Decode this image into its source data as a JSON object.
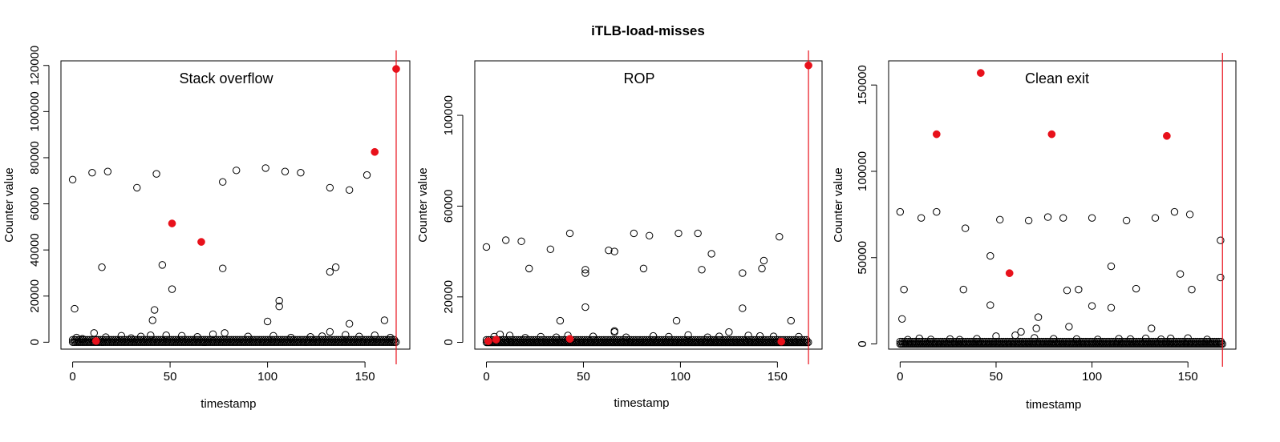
{
  "figure_title": "iTLB-load-misses",
  "colors": {
    "marker": "#000000",
    "highlight": "#e8111b",
    "vline": "#e8111b",
    "frame": "#000000"
  },
  "chart_data": [
    {
      "type": "scatter",
      "title": "Stack overflow",
      "xlabel": "timestamp",
      "ylabel": "Counter value",
      "xlim": [
        -6,
        173
      ],
      "ylim": [
        -3000,
        122000
      ],
      "xticks": [
        0,
        50,
        100,
        150
      ],
      "yticks": [
        0,
        20000,
        40000,
        60000,
        80000,
        100000,
        120000
      ],
      "vline_x": 166,
      "baseline": {
        "x_from": 0,
        "x_to": 166,
        "y": 0
      },
      "outliers": [
        [
          0,
          70500
        ],
        [
          1,
          14500
        ],
        [
          10,
          73500
        ],
        [
          15,
          32500
        ],
        [
          18,
          74000
        ],
        [
          33,
          67000
        ],
        [
          41,
          9500
        ],
        [
          42,
          14000
        ],
        [
          43,
          73000
        ],
        [
          46,
          33500
        ],
        [
          51,
          23000
        ],
        [
          77,
          69500
        ],
        [
          77,
          32000
        ],
        [
          84,
          74500
        ],
        [
          99,
          75500
        ],
        [
          100,
          9000
        ],
        [
          106,
          15500
        ],
        [
          106,
          18000
        ],
        [
          109,
          74000
        ],
        [
          117,
          73500
        ],
        [
          132,
          67000
        ],
        [
          132,
          30500
        ],
        [
          135,
          32500
        ],
        [
          142,
          66000
        ],
        [
          142,
          8000
        ],
        [
          151,
          72500
        ],
        [
          160,
          9500
        ]
      ],
      "low_points": [
        [
          2,
          2000
        ],
        [
          5,
          1500
        ],
        [
          11,
          4000
        ],
        [
          17,
          2200
        ],
        [
          25,
          2800
        ],
        [
          30,
          1800
        ],
        [
          35,
          2500
        ],
        [
          40,
          3000
        ],
        [
          48,
          3000
        ],
        [
          56,
          2800
        ],
        [
          64,
          2300
        ],
        [
          72,
          3500
        ],
        [
          78,
          4000
        ],
        [
          90,
          2500
        ],
        [
          103,
          2800
        ],
        [
          112,
          2000
        ],
        [
          122,
          2300
        ],
        [
          128,
          2600
        ],
        [
          132,
          4500
        ],
        [
          140,
          3200
        ],
        [
          147,
          2500
        ],
        [
          155,
          3000
        ],
        [
          163,
          2000
        ]
      ],
      "highlights": [
        [
          12,
          500
        ],
        [
          51,
          51500
        ],
        [
          66,
          43500
        ],
        [
          155,
          82500
        ],
        [
          166,
          118500
        ]
      ]
    },
    {
      "type": "scatter",
      "title": "ROP",
      "xlabel": "timestamp",
      "ylabel": "Counter value",
      "xlim": [
        -6,
        173
      ],
      "ylim": [
        -3000,
        124000
      ],
      "xticks": [
        0,
        50,
        100,
        150
      ],
      "yticks": [
        0,
        20000,
        60000,
        100000
      ],
      "vline_x": 166,
      "baseline": {
        "x_from": 0,
        "x_to": 166,
        "y": 0
      },
      "outliers": [
        [
          0,
          42000
        ],
        [
          10,
          45000
        ],
        [
          18,
          44500
        ],
        [
          22,
          32500
        ],
        [
          33,
          41000
        ],
        [
          38,
          9500
        ],
        [
          43,
          48000
        ],
        [
          51,
          30500
        ],
        [
          51,
          32000
        ],
        [
          51,
          15500
        ],
        [
          63,
          40500
        ],
        [
          66,
          40000
        ],
        [
          76,
          48000
        ],
        [
          81,
          32500
        ],
        [
          84,
          47000
        ],
        [
          98,
          9500
        ],
        [
          99,
          48000
        ],
        [
          109,
          48000
        ],
        [
          111,
          32000
        ],
        [
          116,
          39000
        ],
        [
          125,
          4500
        ],
        [
          132,
          30500
        ],
        [
          132,
          15000
        ],
        [
          142,
          32500
        ],
        [
          143,
          36000
        ],
        [
          151,
          46500
        ],
        [
          157,
          9500
        ]
      ],
      "low_points": [
        [
          4,
          2500
        ],
        [
          7,
          3500
        ],
        [
          12,
          3000
        ],
        [
          20,
          2000
        ],
        [
          28,
          2500
        ],
        [
          36,
          2200
        ],
        [
          42,
          3000
        ],
        [
          55,
          2600
        ],
        [
          66,
          5000
        ],
        [
          66,
          4500
        ],
        [
          72,
          2200
        ],
        [
          86,
          2800
        ],
        [
          94,
          2500
        ],
        [
          104,
          3200
        ],
        [
          114,
          2200
        ],
        [
          120,
          2600
        ],
        [
          135,
          3000
        ],
        [
          141,
          2800
        ],
        [
          148,
          2600
        ],
        [
          161,
          2500
        ]
      ],
      "highlights": [
        [
          1,
          500
        ],
        [
          5,
          1200
        ],
        [
          43,
          1500
        ],
        [
          152,
          300
        ],
        [
          166,
          122000
        ]
      ]
    },
    {
      "type": "scatter",
      "title": "Clean exit",
      "xlabel": "timestamp",
      "ylabel": "Counter value",
      "xlim": [
        -6,
        175
      ],
      "ylim": [
        -3000,
        164000
      ],
      "xticks": [
        0,
        50,
        100,
        150
      ],
      "yticks": [
        0,
        50000,
        100000,
        150000
      ],
      "vline_x": 168,
      "baseline": {
        "x_from": 0,
        "x_to": 168,
        "y": 0
      },
      "outliers": [
        [
          0,
          76500
        ],
        [
          1,
          14500
        ],
        [
          2,
          31500
        ],
        [
          11,
          73000
        ],
        [
          19,
          76500
        ],
        [
          33,
          31500
        ],
        [
          34,
          67000
        ],
        [
          47,
          51000
        ],
        [
          47,
          22500
        ],
        [
          52,
          72000
        ],
        [
          67,
          71500
        ],
        [
          71,
          9000
        ],
        [
          72,
          15500
        ],
        [
          77,
          73500
        ],
        [
          85,
          73000
        ],
        [
          87,
          31000
        ],
        [
          88,
          10000
        ],
        [
          93,
          31500
        ],
        [
          100,
          73000
        ],
        [
          100,
          22000
        ],
        [
          110,
          21000
        ],
        [
          110,
          45000
        ],
        [
          118,
          71500
        ],
        [
          123,
          32000
        ],
        [
          131,
          9000
        ],
        [
          133,
          73000
        ],
        [
          143,
          76500
        ],
        [
          146,
          40500
        ],
        [
          151,
          75000
        ],
        [
          152,
          31500
        ],
        [
          167,
          60000
        ],
        [
          167,
          38500
        ]
      ],
      "low_points": [
        [
          4,
          2500
        ],
        [
          10,
          3200
        ],
        [
          16,
          2600
        ],
        [
          26,
          2800
        ],
        [
          31,
          2500
        ],
        [
          40,
          3000
        ],
        [
          50,
          4500
        ],
        [
          60,
          5000
        ],
        [
          63,
          7000
        ],
        [
          70,
          3500
        ],
        [
          80,
          3000
        ],
        [
          92,
          2800
        ],
        [
          103,
          2600
        ],
        [
          114,
          3000
        ],
        [
          120,
          2800
        ],
        [
          128,
          3200
        ],
        [
          136,
          2700
        ],
        [
          141,
          3200
        ],
        [
          150,
          3400
        ],
        [
          160,
          2600
        ]
      ],
      "highlights": [
        [
          19,
          121500
        ],
        [
          42,
          157000
        ],
        [
          57,
          41000
        ],
        [
          79,
          121500
        ],
        [
          139,
          120500
        ]
      ]
    }
  ]
}
